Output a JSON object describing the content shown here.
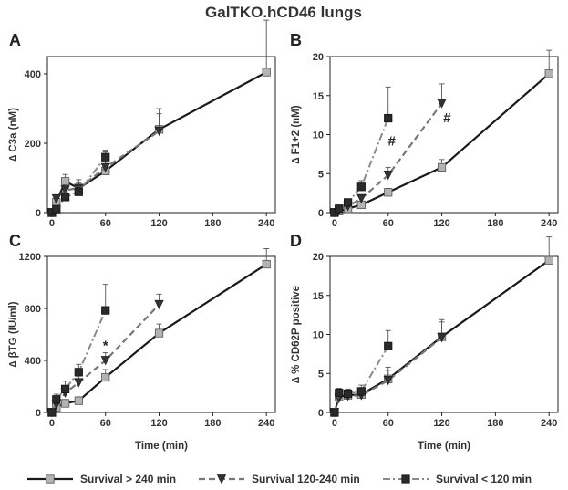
{
  "figure_title": "GalTKO.hCD46 lungs",
  "legend": {
    "entries": [
      {
        "label": "Survival > 240 min",
        "color": "#1a1a1a",
        "dash": "solid",
        "marker": "square-gray"
      },
      {
        "label": "Survival 120-240 min",
        "color": "#777777",
        "dash": "dashed",
        "marker": "triangle-dark"
      },
      {
        "label": "Survival < 120 min",
        "color": "#888888",
        "dash": "dashdot",
        "marker": "square-dark"
      }
    ]
  },
  "chart_data": [
    {
      "panel": "A",
      "type": "line",
      "ylabel": "∆ C3a (nM)",
      "xlabel": "",
      "xlim": [
        -5,
        250
      ],
      "ylim": [
        0,
        450
      ],
      "xticks": [
        0,
        60,
        120,
        180,
        240
      ],
      "yticks": [
        0,
        200,
        400
      ],
      "series": [
        {
          "name": "Survival > 240 min",
          "x": [
            0,
            5,
            15,
            30,
            60,
            120,
            240
          ],
          "y": [
            0,
            30,
            90,
            70,
            120,
            240,
            405
          ],
          "err": [
            0,
            15,
            20,
            25,
            55,
            60,
            150
          ]
        },
        {
          "name": "Survival 120-240 min",
          "x": [
            0,
            5,
            15,
            30,
            60,
            120
          ],
          "y": [
            0,
            40,
            65,
            70,
            130,
            235
          ],
          "err": [
            0,
            10,
            15,
            15,
            30,
            50
          ]
        },
        {
          "name": "Survival < 120 min",
          "x": [
            0,
            5,
            15,
            30,
            60
          ],
          "y": [
            0,
            10,
            45,
            60,
            160
          ],
          "err": [
            0,
            8,
            15,
            15,
            20
          ]
        }
      ],
      "annotations": []
    },
    {
      "panel": "B",
      "type": "line",
      "ylabel": "∆ F1+2 (nM)",
      "xlabel": "",
      "xlim": [
        -5,
        250
      ],
      "ylim": [
        0,
        20
      ],
      "xticks": [
        0,
        60,
        120,
        180,
        240
      ],
      "yticks": [
        0,
        5,
        10,
        15,
        20
      ],
      "series": [
        {
          "name": "Survival > 240 min",
          "x": [
            0,
            5,
            15,
            30,
            60,
            120,
            240
          ],
          "y": [
            0,
            0.2,
            0.5,
            1.0,
            2.6,
            5.8,
            17.8
          ],
          "err": [
            0,
            0.1,
            0.2,
            0.3,
            0.5,
            1.0,
            3.0
          ]
        },
        {
          "name": "Survival 120-240 min",
          "x": [
            0,
            5,
            15,
            30,
            60,
            120
          ],
          "y": [
            0,
            0.3,
            0.8,
            1.8,
            4.8,
            14.0
          ],
          "err": [
            0,
            0.1,
            0.3,
            0.5,
            1.0,
            2.5
          ]
        },
        {
          "name": "Survival < 120 min",
          "x": [
            0,
            5,
            15,
            30,
            60
          ],
          "y": [
            0,
            0.5,
            1.3,
            3.3,
            12.1
          ],
          "err": [
            0,
            0.2,
            0.4,
            0.8,
            4.0
          ]
        }
      ],
      "annotations": [
        {
          "text": "#",
          "x": 64,
          "y": 8.6
        },
        {
          "text": "#",
          "x": 126,
          "y": 11.6
        }
      ]
    },
    {
      "panel": "C",
      "type": "line",
      "ylabel": "∆ βTG (IU/ml)",
      "xlabel": "Time (min)",
      "xlim": [
        -5,
        250
      ],
      "ylim": [
        0,
        1200
      ],
      "xticks": [
        0,
        60,
        120,
        180,
        240
      ],
      "yticks": [
        0,
        400,
        800,
        1200
      ],
      "series": [
        {
          "name": "Survival > 240 min",
          "x": [
            0,
            5,
            15,
            30,
            60,
            120,
            240
          ],
          "y": [
            0,
            40,
            70,
            90,
            270,
            610,
            1140
          ],
          "err": [
            0,
            20,
            30,
            30,
            60,
            70,
            120
          ]
        },
        {
          "name": "Survival 120-240 min",
          "x": [
            0,
            5,
            15,
            30,
            60,
            120
          ],
          "y": [
            0,
            60,
            150,
            230,
            400,
            830
          ],
          "err": [
            0,
            30,
            50,
            50,
            60,
            80
          ]
        },
        {
          "name": "Survival < 120 min",
          "x": [
            0,
            5,
            15,
            30,
            60
          ],
          "y": [
            0,
            100,
            180,
            310,
            785
          ],
          "err": [
            0,
            40,
            60,
            60,
            200
          ]
        }
      ],
      "annotations": [
        {
          "text": "*",
          "x": 60,
          "y": 480
        }
      ]
    },
    {
      "panel": "D",
      "type": "line",
      "ylabel": "∆ % CD62P positive",
      "xlabel": "Time (min)",
      "xlim": [
        -5,
        250
      ],
      "ylim": [
        0,
        20
      ],
      "xticks": [
        0,
        60,
        120,
        180,
        240
      ],
      "yticks": [
        0,
        5,
        10,
        15,
        20
      ],
      "series": [
        {
          "name": "Survival > 240 min",
          "x": [
            0,
            5,
            15,
            30,
            60,
            120,
            240
          ],
          "y": [
            0,
            2.0,
            2.2,
            2.3,
            4.3,
            9.7,
            19.5
          ],
          "err": [
            0,
            0.6,
            0.7,
            0.8,
            1.5,
            2.2,
            3.0
          ]
        },
        {
          "name": "Survival 120-240 min",
          "x": [
            0,
            5,
            15,
            30,
            60,
            120
          ],
          "y": [
            0,
            1.8,
            2.1,
            2.2,
            4.1,
            9.6
          ],
          "err": [
            0,
            0.5,
            0.6,
            0.7,
            1.3,
            2.0
          ]
        },
        {
          "name": "Survival < 120 min",
          "x": [
            0,
            5,
            15,
            30,
            60
          ],
          "y": [
            0,
            2.5,
            2.4,
            2.7,
            8.5
          ],
          "err": [
            0,
            0.6,
            0.6,
            0.8,
            2.0
          ]
        }
      ],
      "annotations": []
    }
  ]
}
